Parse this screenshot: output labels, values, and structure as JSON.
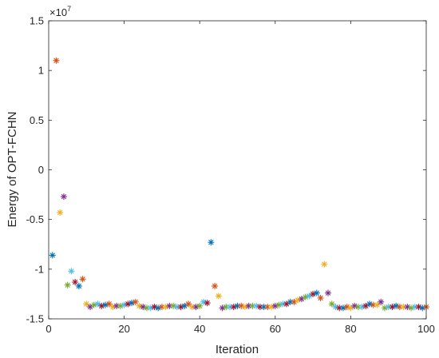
{
  "chart_data": {
    "type": "scatter",
    "xlabel": "Iteration",
    "ylabel": "Energy of OPT-FCHN",
    "exponent_label": "×10",
    "exponent_power": "7",
    "exponent": 7,
    "xlim": [
      0,
      100
    ],
    "ylim": [
      -1.5,
      1.5
    ],
    "xticks": [
      0,
      20,
      40,
      60,
      80,
      100
    ],
    "xtick_labels": [
      "0",
      "20",
      "40",
      "60",
      "80",
      "100"
    ],
    "yticks": [
      -1.5,
      -1,
      -0.5,
      0,
      0.5,
      1,
      1.5
    ],
    "ytick_labels": [
      "-1.5",
      "-1",
      "-0.5",
      "0",
      "0.5",
      "1",
      "1.5"
    ],
    "marker": "*",
    "grid": false,
    "color_cycle": [
      "#0072BD",
      "#D95319",
      "#EDB120",
      "#7E2F8E",
      "#77AC30",
      "#4DBEEE",
      "#A2142F"
    ],
    "x": [
      1,
      2,
      3,
      4,
      5,
      6,
      7,
      8,
      9,
      10,
      11,
      12,
      13,
      14,
      15,
      16,
      17,
      18,
      19,
      20,
      21,
      22,
      23,
      24,
      25,
      26,
      27,
      28,
      29,
      30,
      31,
      32,
      33,
      34,
      35,
      36,
      37,
      38,
      39,
      40,
      41,
      42,
      43,
      44,
      45,
      46,
      47,
      48,
      49,
      50,
      51,
      52,
      53,
      54,
      55,
      56,
      57,
      58,
      59,
      60,
      61,
      62,
      63,
      64,
      65,
      66,
      67,
      68,
      69,
      70,
      71,
      72,
      73,
      74,
      75,
      76,
      77,
      78,
      79,
      80,
      81,
      82,
      83,
      84,
      85,
      86,
      87,
      88,
      89,
      90,
      91,
      92,
      93,
      94,
      95,
      96,
      97,
      98,
      99,
      100
    ],
    "y": [
      -0.86,
      1.1,
      -0.43,
      -0.27,
      -1.16,
      -1.02,
      -1.13,
      -1.17,
      -1.1,
      -1.35,
      -1.38,
      -1.36,
      -1.35,
      -1.37,
      -1.36,
      -1.35,
      -1.38,
      -1.37,
      -1.37,
      -1.36,
      -1.35,
      -1.34,
      -1.33,
      -1.37,
      -1.38,
      -1.39,
      -1.39,
      -1.38,
      -1.39,
      -1.38,
      -1.38,
      -1.37,
      -1.37,
      -1.38,
      -1.38,
      -1.37,
      -1.35,
      -1.38,
      -1.38,
      -1.37,
      -1.33,
      -1.34,
      -0.73,
      -1.17,
      -1.27,
      -1.39,
      -1.38,
      -1.38,
      -1.38,
      -1.37,
      -1.37,
      -1.38,
      -1.37,
      -1.37,
      -1.37,
      -1.38,
      -1.38,
      -1.38,
      -1.38,
      -1.37,
      -1.36,
      -1.35,
      -1.35,
      -1.33,
      -1.33,
      -1.31,
      -1.3,
      -1.28,
      -1.27,
      -1.25,
      -1.24,
      -1.29,
      -0.95,
      -1.24,
      -1.35,
      -1.38,
      -1.39,
      -1.39,
      -1.38,
      -1.39,
      -1.37,
      -1.38,
      -1.38,
      -1.37,
      -1.35,
      -1.36,
      -1.36,
      -1.33,
      -1.39,
      -1.38,
      -1.38,
      -1.37,
      -1.38,
      -1.38,
      -1.38,
      -1.39,
      -1.38,
      -1.38,
      -1.39,
      -1.38
    ]
  }
}
